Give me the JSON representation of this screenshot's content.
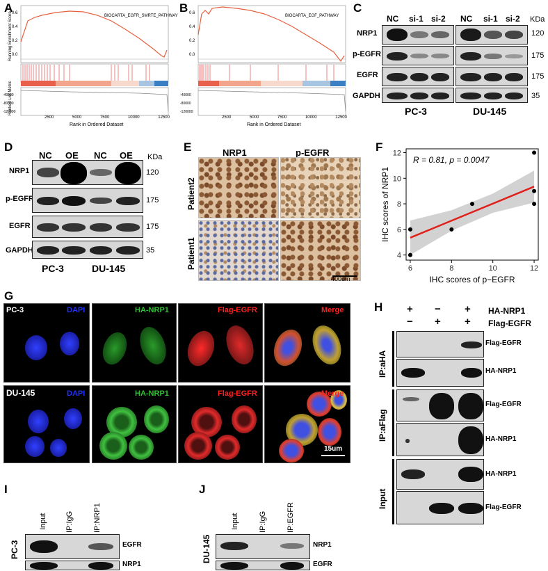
{
  "panels": {
    "A": "A",
    "B": "B",
    "C": "C",
    "D": "D",
    "E": "E",
    "F": "F",
    "G": "G",
    "H": "H",
    "I": "I",
    "J": "J"
  },
  "gsea": {
    "es_axis": "Running Enrichment Score",
    "metric_axis": "Ranked List Metric",
    "xlabel": "Rank in Ordered Dataset",
    "xticks": [
      "2500",
      "5000",
      "7500",
      "10000",
      "12500"
    ],
    "a_legend": "BIOCARTA_EGFR_SMRTE_PATHWAY",
    "b_legend": "BIOCARTA_EGF_PATHWAY",
    "a_yticks": [
      "0.6",
      "0.4",
      "0.2",
      "0.0"
    ],
    "b_yticks": [
      "0.6",
      "0.4",
      "0.2",
      "0.0"
    ],
    "metric_ticks": [
      "-40000",
      "-80000",
      "-120000"
    ]
  },
  "c": {
    "lanes_pc3": [
      "NC",
      "si-1",
      "si-2"
    ],
    "lanes_du": [
      "NC",
      "si-1",
      "si-2"
    ],
    "kda": "KDa",
    "rows": [
      "NRP1",
      "p-EGFR",
      "EGFR",
      "GAPDH"
    ],
    "sizes": [
      "120",
      "175",
      "175",
      "35"
    ],
    "cell1": "PC-3",
    "cell2": "DU-145"
  },
  "d": {
    "lanes": [
      "NC",
      "OE",
      "NC",
      "OE"
    ],
    "kda": "KDa",
    "rows": [
      "NRP1",
      "p-EGFR",
      "EGFR",
      "GAPDH"
    ],
    "sizes": [
      "120",
      "175",
      "175",
      "35"
    ],
    "cell1": "PC-3",
    "cell2": "DU-145"
  },
  "e": {
    "col1": "NRP1",
    "col2": "p-EGFR",
    "row1": "Patient2",
    "row2": "Patient1",
    "scale": "400um"
  },
  "chart_data": {
    "type": "scatter",
    "title": "",
    "annotation": "R = 0.81, p = 0.0047",
    "xlabel": "IHC scores of p−EGFR",
    "ylabel": "IHC scores of NRP1",
    "xlim": [
      5.8,
      12.2
    ],
    "ylim": [
      3.6,
      12.3
    ],
    "xticks": [
      6,
      8,
      10,
      12
    ],
    "yticks": [
      4,
      6,
      8,
      10,
      12
    ],
    "points": [
      [
        6,
        4
      ],
      [
        6,
        6
      ],
      [
        8,
        6
      ],
      [
        9,
        8
      ],
      [
        12,
        8
      ],
      [
        12,
        9
      ],
      [
        12,
        12
      ]
    ],
    "fit": {
      "x0": 6,
      "y0": 5.35,
      "x1": 12,
      "y1": 9.35
    },
    "ci_band": {
      "x": [
        6,
        8,
        10,
        12
      ],
      "lower": [
        4.0,
        5.9,
        7.3,
        8.1
      ],
      "upper": [
        6.7,
        7.5,
        8.8,
        10.6
      ]
    },
    "colors": {
      "fit": "#e0201b",
      "band": "#bfbfbf",
      "points": "#000000"
    }
  },
  "g": {
    "row1": "PC-3",
    "row2": "DU-145",
    "dapi": "DAPI",
    "ha": "HA-NRP1",
    "flag": "Flag-EGFR",
    "merge": "Merge",
    "scale": "15um"
  },
  "h": {
    "ha_row": "HA-NRP1",
    "flag_row": "Flag-EGFR",
    "ha_signs": [
      "+",
      "−",
      "+"
    ],
    "flag_signs": [
      "−",
      "+",
      "+"
    ],
    "groups": [
      "IP:aHA",
      "IP:aFlag",
      "Input"
    ],
    "bands": [
      "Flag-EGFR",
      "HA-NRP1",
      "Flag-EGFR",
      "HA-NRP1",
      "HA-NRP1",
      "Flag-EGFR"
    ]
  },
  "i": {
    "lanes": [
      "Input",
      "IP:IgG",
      "IP:NRP1"
    ],
    "cell": "PC-3",
    "bands": [
      "EGFR",
      "NRP1"
    ]
  },
  "j": {
    "lanes": [
      "Input",
      "IP:IgG",
      "IP:EGFR"
    ],
    "cell": "DU-145",
    "bands": [
      "NRP1",
      "EGFR"
    ]
  }
}
